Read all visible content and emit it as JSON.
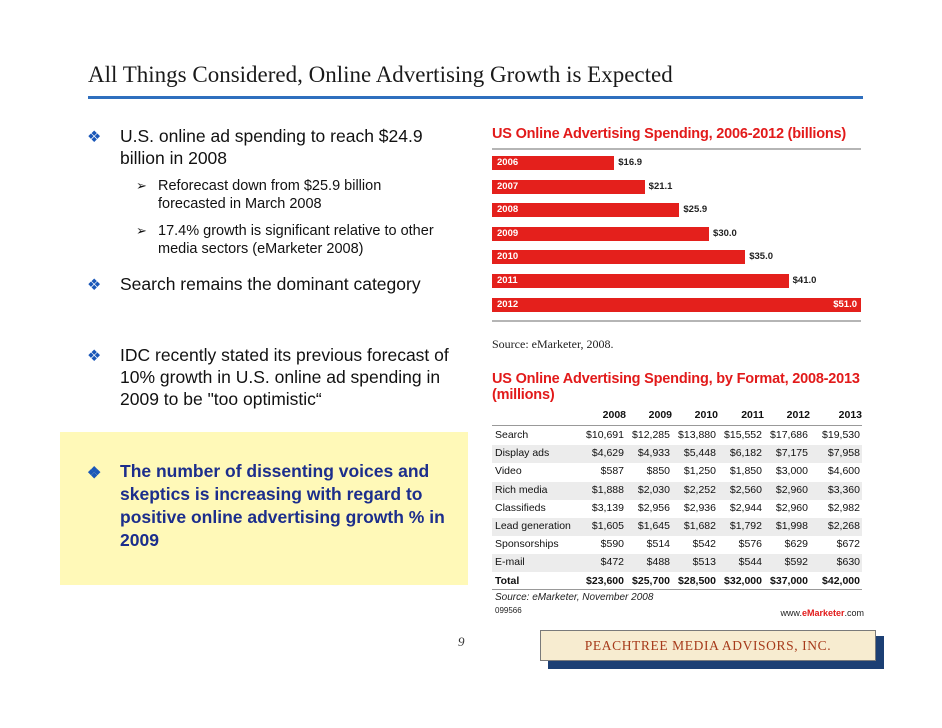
{
  "slide": {
    "title": "All Things Considered, Online Advertising Growth is Expected",
    "page_number": "9",
    "footer_brand": "PEACHTREE MEDIA ADVISORS, INC."
  },
  "bullets": {
    "b1": "U.S. online ad spending to reach $24.9 billion in 2008",
    "b1_sub1": "Reforecast down from $25.9 billion forecasted in March 2008",
    "b1_sub2": "17.4% growth is significant relative to other media sectors (eMarketer 2008)",
    "b2": "Search remains the dominant category",
    "b3": "IDC recently stated its previous forecast of 10% growth in U.S. online ad spending in 2009 to be \"too optimistic“",
    "b4": "The number of dissenting voices and skeptics is increasing with regard to positive online advertising growth % in 2009"
  },
  "colors": {
    "accent_blue": "#2f6fbe",
    "bar_red": "#e4201c",
    "highlight": "#fff9b8",
    "emphasis_text": "#1c2e8c"
  },
  "chart_data": [
    {
      "type": "bar",
      "orientation": "horizontal",
      "title": "US Online Advertising Spending, 2006-2012 (billions)",
      "categories": [
        "2006",
        "2007",
        "2008",
        "2009",
        "2010",
        "2011",
        "2012"
      ],
      "values": [
        16.9,
        21.1,
        25.9,
        30.0,
        35.0,
        41.0,
        51.0
      ],
      "labels": [
        "$16.9",
        "$21.1",
        "$25.9",
        "$30.0",
        "$35.0",
        "$41.0",
        "$51.0"
      ],
      "xlim": [
        0,
        51
      ],
      "source": "Source: eMarketer, 2008."
    },
    {
      "type": "table",
      "title_line1": "US Online Advertising Spending, by Format, 2008-2013",
      "title_line2": "(millions)",
      "columns": [
        "2008",
        "2009",
        "2010",
        "2011",
        "2012",
        "2013"
      ],
      "rows": [
        {
          "label": "Search",
          "values": [
            "$10,691",
            "$12,285",
            "$13,880",
            "$15,552",
            "$17,686",
            "$19,530"
          ]
        },
        {
          "label": "Display ads",
          "values": [
            "$4,629",
            "$4,933",
            "$5,448",
            "$6,182",
            "$7,175",
            "$7,958"
          ]
        },
        {
          "label": "Video",
          "values": [
            "$587",
            "$850",
            "$1,250",
            "$1,850",
            "$3,000",
            "$4,600"
          ]
        },
        {
          "label": "Rich media",
          "values": [
            "$1,888",
            "$2,030",
            "$2,252",
            "$2,560",
            "$2,960",
            "$3,360"
          ]
        },
        {
          "label": "Classifieds",
          "values": [
            "$3,139",
            "$2,956",
            "$2,936",
            "$2,944",
            "$2,960",
            "$2,982"
          ]
        },
        {
          "label": "Lead generation",
          "values": [
            "$1,605",
            "$1,645",
            "$1,682",
            "$1,792",
            "$1,998",
            "$2,268"
          ]
        },
        {
          "label": "Sponsorships",
          "values": [
            "$590",
            "$514",
            "$542",
            "$576",
            "$629",
            "$672"
          ]
        },
        {
          "label": "E-mail",
          "values": [
            "$472",
            "$488",
            "$513",
            "$544",
            "$592",
            "$630"
          ]
        },
        {
          "label": "Total",
          "values": [
            "$23,600",
            "$25,700",
            "$28,500",
            "$32,000",
            "$37,000",
            "$42,000"
          ]
        }
      ],
      "source": "Source: eMarketer, November 2008",
      "code": "099566",
      "site_prefix": "www.",
      "site_brand": "eMarketer",
      "site_suffix": ".com"
    }
  ]
}
